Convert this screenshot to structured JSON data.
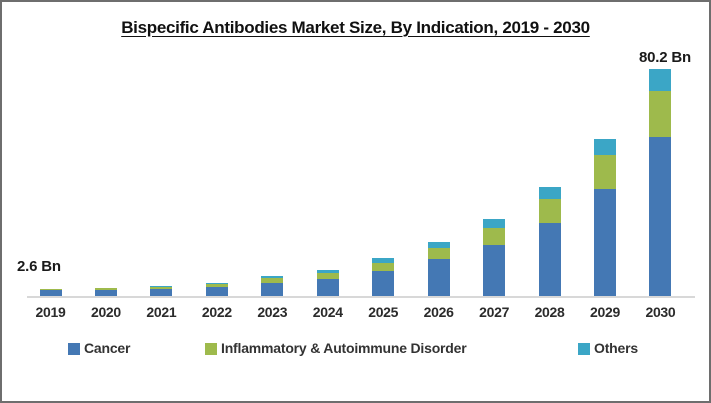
{
  "chart": {
    "annotations": {
      "first": "2.6 Bn",
      "last": "80.2 Bn"
    }
  },
  "chart_data": {
    "type": "bar",
    "stacked": true,
    "title": "Bispecific Antibodies Market Size, By Indication, 2019 - 2030",
    "unit": "Bn",
    "categories": [
      "2019",
      "2020",
      "2021",
      "2022",
      "2023",
      "2024",
      "2025",
      "2026",
      "2027",
      "2028",
      "2029",
      "2030"
    ],
    "series": [
      {
        "name": "Cancer",
        "color": "#4478b4",
        "values": [
          2.0,
          2.2,
          2.6,
          3.3,
          4.7,
          6.0,
          8.7,
          12.9,
          18.0,
          25.7,
          37.8,
          56.1
        ]
      },
      {
        "name": "Inflammatory & Autoimmune Disorder",
        "color": "#9eba4c",
        "values": [
          0.4,
          0.5,
          0.6,
          0.9,
          1.5,
          2.2,
          3.1,
          4.0,
          5.9,
          8.6,
          12.1,
          16.1
        ]
      },
      {
        "name": "Others",
        "color": "#3ba6c6",
        "values": [
          0.2,
          0.2,
          0.3,
          0.4,
          0.7,
          1.1,
          1.7,
          2.1,
          3.4,
          4.0,
          5.5,
          8.0
        ]
      }
    ],
    "totals": [
      2.6,
      2.9,
      3.5,
      4.6,
      6.9,
      9.3,
      13.5,
      19.0,
      27.3,
      38.3,
      55.4,
      80.2
    ],
    "data_labels": {
      "2019": "2.6 Bn",
      "2030": "80.2 Bn"
    },
    "xlabel": "",
    "ylabel": "",
    "ylim": [
      0,
      85
    ],
    "grid": false,
    "y_axis_visible": false,
    "legend_position": "bottom"
  }
}
